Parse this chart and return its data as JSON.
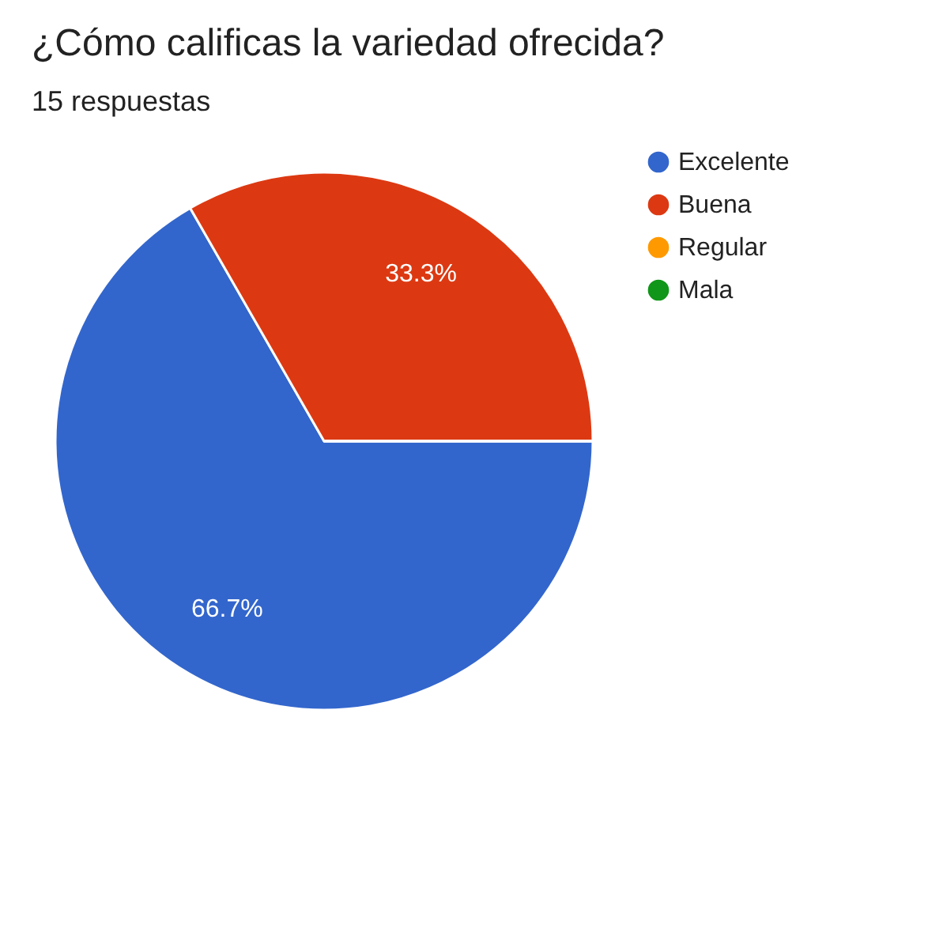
{
  "chart_data": {
    "type": "pie",
    "title": "¿Cómo calificas la variedad ofrecida?",
    "subtitle": "15 respuestas",
    "categories": [
      "Excelente",
      "Buena",
      "Regular",
      "Mala"
    ],
    "values": [
      66.7,
      33.3,
      0,
      0
    ],
    "colors": [
      "#3366cc",
      "#dc3912",
      "#ff9900",
      "#109618"
    ],
    "value_labels": [
      "66.7%",
      "33.3%",
      null,
      null
    ],
    "legend": "right"
  }
}
